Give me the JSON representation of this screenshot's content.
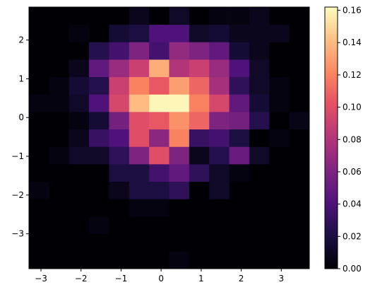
{
  "chart_data": {
    "type": "heatmap",
    "title": "",
    "xlabel": "",
    "ylabel": "",
    "colormap": "magma",
    "x_edges": [
      -3.3,
      -2.8,
      -2.3,
      -1.8,
      -1.3,
      -0.8,
      -0.3,
      0.2,
      0.7,
      1.2,
      1.7,
      2.2,
      2.7,
      3.2,
      3.7
    ],
    "y_edges": [
      -3.9,
      -3.45,
      -3.0,
      -2.55,
      -2.1,
      -1.65,
      -1.2,
      -0.75,
      -0.3,
      0.15,
      0.6,
      1.05,
      1.5,
      1.95,
      2.4,
      2.85
    ],
    "xlim": [
      -3.3,
      3.7
    ],
    "ylim": [
      -3.9,
      2.85
    ],
    "xticks": [
      -3,
      -2,
      -1,
      0,
      1,
      2,
      3
    ],
    "xtick_labels": [
      "−3",
      "−2",
      "−1",
      "0",
      "1",
      "2",
      "3"
    ],
    "yticks": [
      -3,
      -2,
      -1,
      0,
      1,
      2
    ],
    "ytick_labels": [
      "−3",
      "−2",
      "−1",
      "0",
      "1",
      "2"
    ],
    "values": [
      [
        0.0,
        0.0,
        0.0,
        0.0,
        0.0,
        0.0,
        0.0,
        0.004,
        0.0,
        0.0,
        0.0,
        0.0,
        0.0,
        0.0
      ],
      [
        0.0,
        0.0,
        0.0,
        0.0,
        0.0,
        0.0,
        0.0,
        0.0,
        0.0,
        0.0,
        0.0,
        0.0,
        0.0,
        0.0
      ],
      [
        0.0,
        0.0,
        0.0,
        0.004,
        0.0,
        0.0,
        0.0,
        0.0,
        0.0,
        0.0,
        0.0,
        0.0,
        0.0,
        0.0
      ],
      [
        0.0,
        0.0,
        0.0,
        0.0,
        0.0,
        0.004,
        0.004,
        0.0,
        0.0,
        0.0,
        0.0,
        0.0,
        0.0,
        0.0
      ],
      [
        0.004,
        0.0,
        0.0,
        0.0,
        0.008,
        0.02,
        0.02,
        0.028,
        0.0,
        0.012,
        0.0,
        0.0,
        0.0,
        0.0
      ],
      [
        0.0,
        0.0,
        0.0,
        0.0,
        0.02,
        0.02,
        0.035,
        0.048,
        0.028,
        0.012,
        0.004,
        0.0,
        0.0,
        0.0
      ],
      [
        0.0,
        0.004,
        0.012,
        0.012,
        0.028,
        0.06,
        0.1,
        0.06,
        0.008,
        0.024,
        0.052,
        0.012,
        0.0,
        0.0
      ],
      [
        0.0,
        0.0,
        0.008,
        0.032,
        0.04,
        0.1,
        0.065,
        0.12,
        0.032,
        0.036,
        0.02,
        0.0,
        0.004,
        0.0
      ],
      [
        0.0,
        0.0,
        0.004,
        0.016,
        0.056,
        0.1,
        0.105,
        0.125,
        0.11,
        0.06,
        0.056,
        0.024,
        0.0,
        0.006
      ],
      [
        0.004,
        0.004,
        0.012,
        0.04,
        0.095,
        0.14,
        0.16,
        0.16,
        0.12,
        0.095,
        0.048,
        0.016,
        0.004,
        0.0
      ],
      [
        0.0,
        0.004,
        0.016,
        0.024,
        0.09,
        0.12,
        0.105,
        0.13,
        0.11,
        0.075,
        0.028,
        0.012,
        0.004,
        0.0
      ],
      [
        0.0,
        0.0,
        0.008,
        0.048,
        0.07,
        0.09,
        0.135,
        0.08,
        0.09,
        0.07,
        0.04,
        0.012,
        0.0,
        0.0
      ],
      [
        0.0,
        0.0,
        0.0,
        0.024,
        0.036,
        0.06,
        0.036,
        0.068,
        0.06,
        0.048,
        0.016,
        0.008,
        0.0,
        0.0
      ],
      [
        0.0,
        0.0,
        0.004,
        0.0,
        0.016,
        0.02,
        0.04,
        0.04,
        0.012,
        0.016,
        0.008,
        0.008,
        0.008,
        0.0
      ],
      [
        0.0,
        0.0,
        0.0,
        0.0,
        0.0,
        0.008,
        0.0,
        0.012,
        0.0,
        0.004,
        0.004,
        0.008,
        0.0,
        0.0
      ]
    ],
    "colorbar": {
      "min": 0.0,
      "max": 0.162,
      "ticks": [
        0.0,
        0.02,
        0.04,
        0.06,
        0.08,
        0.1,
        0.12,
        0.14,
        0.16
      ],
      "tick_labels": [
        "0.00",
        "0.02",
        "0.04",
        "0.06",
        "0.08",
        "0.10",
        "0.12",
        "0.14",
        "0.16"
      ]
    },
    "grid": false,
    "legend": "none"
  }
}
